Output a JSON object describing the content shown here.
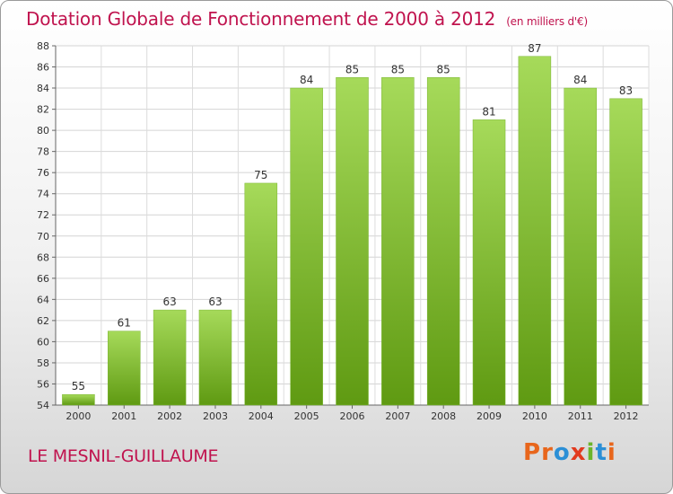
{
  "chart_data": {
    "type": "bar",
    "title": "Dotation Globale de Fonctionnement de 2000 à 2012",
    "subtitle": "(en milliers d'€)",
    "categories": [
      "2000",
      "2001",
      "2002",
      "2003",
      "2004",
      "2005",
      "2006",
      "2007",
      "2008",
      "2009",
      "2010",
      "2011",
      "2012"
    ],
    "values": [
      55,
      61,
      63,
      63,
      75,
      84,
      85,
      85,
      85,
      81,
      87,
      84,
      83
    ],
    "data_labels": [
      "55",
      "61",
      "63",
      "63",
      "75",
      "84",
      "85",
      "85",
      "85",
      "81",
      "87",
      "84",
      "83"
    ],
    "ylim": [
      54,
      88
    ],
    "yticks": [
      54,
      56,
      58,
      60,
      62,
      64,
      66,
      68,
      70,
      72,
      74,
      76,
      78,
      80,
      82,
      84,
      86,
      88
    ],
    "xlabel": "",
    "ylabel": "",
    "grid": true,
    "bar_color_light": "#a6da5a",
    "bar_color_dark": "#5f9a12"
  },
  "commune": "LE MESNIL-GUILLAUME",
  "logo": {
    "letters": [
      "P",
      "r",
      "o",
      "x",
      "i",
      "t",
      "i"
    ],
    "colors": [
      "#e8661c",
      "#e8661c",
      "#2b8fd6",
      "#e23a1e",
      "#6bb52b",
      "#2b8fd6",
      "#e8661c"
    ]
  },
  "colors": {
    "accent": "#c0134e"
  }
}
